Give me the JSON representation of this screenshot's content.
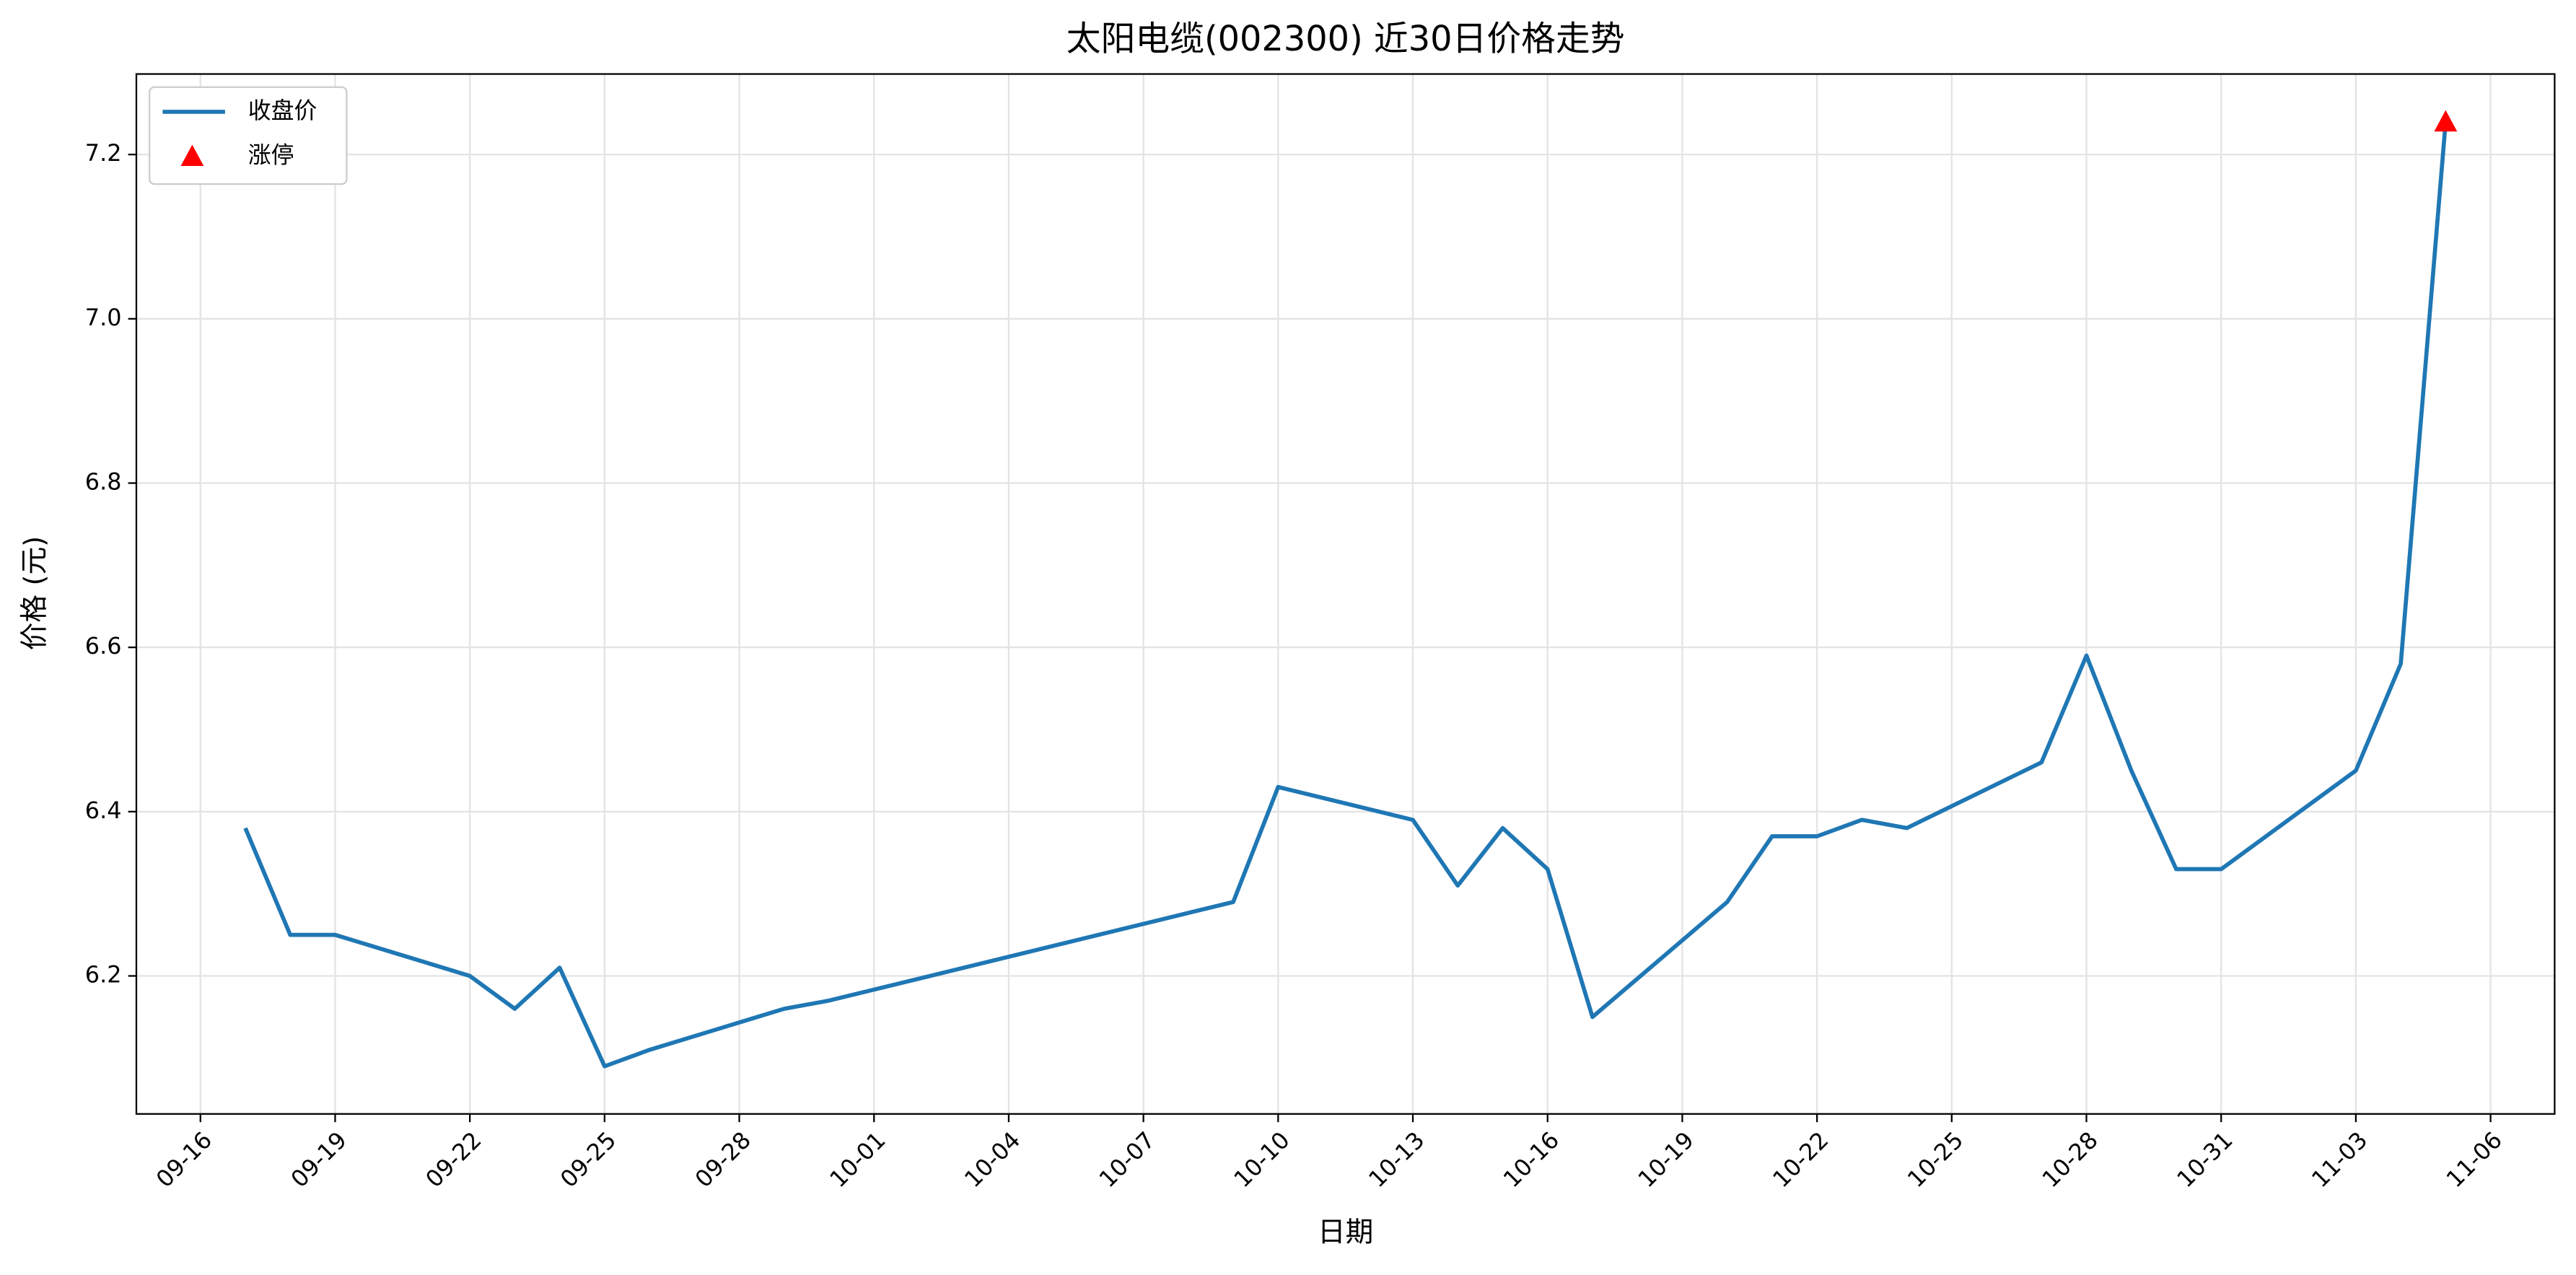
{
  "chart_data": {
    "type": "line",
    "title": "太阳电缆(002300) 近30日价格走势",
    "x_label": "日期",
    "y_label": "价格 (元)",
    "x": [
      "09-17",
      "09-18",
      "09-19",
      "09-22",
      "09-23",
      "09-24",
      "09-25",
      "09-26",
      "09-29",
      "09-30",
      "10-09",
      "10-10",
      "10-13",
      "10-14",
      "10-15",
      "10-16",
      "10-17",
      "10-20",
      "10-21",
      "10-22",
      "10-23",
      "10-24",
      "10-27",
      "10-28",
      "10-29",
      "10-30",
      "10-31",
      "11-03",
      "11-04",
      "11-05"
    ],
    "series": [
      {
        "name": "收盘价",
        "color": "#1f77b4",
        "values": [
          6.38,
          6.25,
          6.25,
          6.2,
          6.16,
          6.21,
          6.09,
          6.11,
          6.16,
          6.17,
          6.29,
          6.43,
          6.39,
          6.31,
          6.38,
          6.33,
          6.15,
          6.29,
          6.37,
          6.37,
          6.39,
          6.38,
          6.46,
          6.59,
          6.45,
          6.33,
          6.33,
          6.45,
          6.58,
          7.24
        ]
      }
    ],
    "markers": {
      "name": "涨停",
      "color": "#ff0000",
      "x": [
        "11-05"
      ],
      "values": [
        7.24
      ]
    },
    "ylim": [
      6.032,
      7.298
    ],
    "yticks": [
      6.2,
      6.4,
      6.6,
      6.8,
      {
        "value": 7,
        "label": "7.0"
      },
      7.2
    ],
    "xticks": [
      "09-16",
      "09-19",
      "09-22",
      "09-25",
      "09-28",
      "10-01",
      "10-04",
      "10-07",
      "10-10",
      "10-13",
      "10-16",
      "10-19",
      "10-22",
      "10-25",
      "10-28",
      "10-31",
      "11-03",
      "11-06"
    ],
    "grid": true,
    "legend": "upper left"
  }
}
